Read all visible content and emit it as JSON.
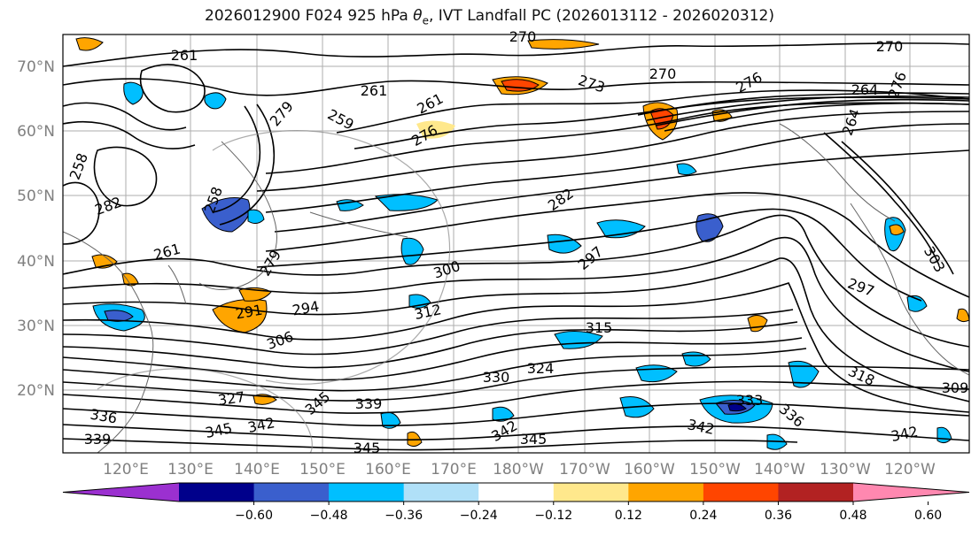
{
  "title": {
    "prefix": "2026012900 F024 925 hPa ",
    "theta": "θ",
    "sub": "e",
    "suffix": ", IVT Landfall PC (2026013112 - 2026020312)"
  },
  "axes": {
    "lat_labels": [
      "70°N",
      "60°N",
      "50°N",
      "40°N",
      "30°N",
      "20°N"
    ],
    "lon_labels": [
      "120°E",
      "130°E",
      "140°E",
      "150°E",
      "160°E",
      "170°E",
      "180°W",
      "170°W",
      "160°W",
      "150°W",
      "140°W",
      "130°W",
      "120°W"
    ]
  },
  "contour_labels": [
    "270",
    "270",
    "270",
    "261",
    "273",
    "276",
    "276",
    "264",
    "261",
    "261",
    "259",
    "258",
    "276",
    "279",
    "258",
    "282",
    "264",
    "261",
    "279",
    "282",
    "297",
    "303",
    "297",
    "300",
    "294",
    "291",
    "306",
    "312",
    "315",
    "318",
    "309",
    "324",
    "327",
    "330",
    "339",
    "336",
    "345",
    "342",
    "345",
    "345",
    "345",
    "342",
    "333",
    "336",
    "342",
    "342",
    "339"
  ],
  "colorbar": {
    "ticks": [
      "−0.60",
      "−0.48",
      "−0.36",
      "−0.24",
      "−0.12",
      "0.12",
      "0.24",
      "0.36",
      "0.48",
      "0.60"
    ],
    "colors": [
      "#9b30d0",
      "#00008b",
      "#3a5fcd",
      "#00bfff",
      "#b0e0f8",
      "#ffffff",
      "#ffe88c",
      "#ffa500",
      "#ff4500",
      "#b22222",
      "#ff88b0"
    ]
  }
}
